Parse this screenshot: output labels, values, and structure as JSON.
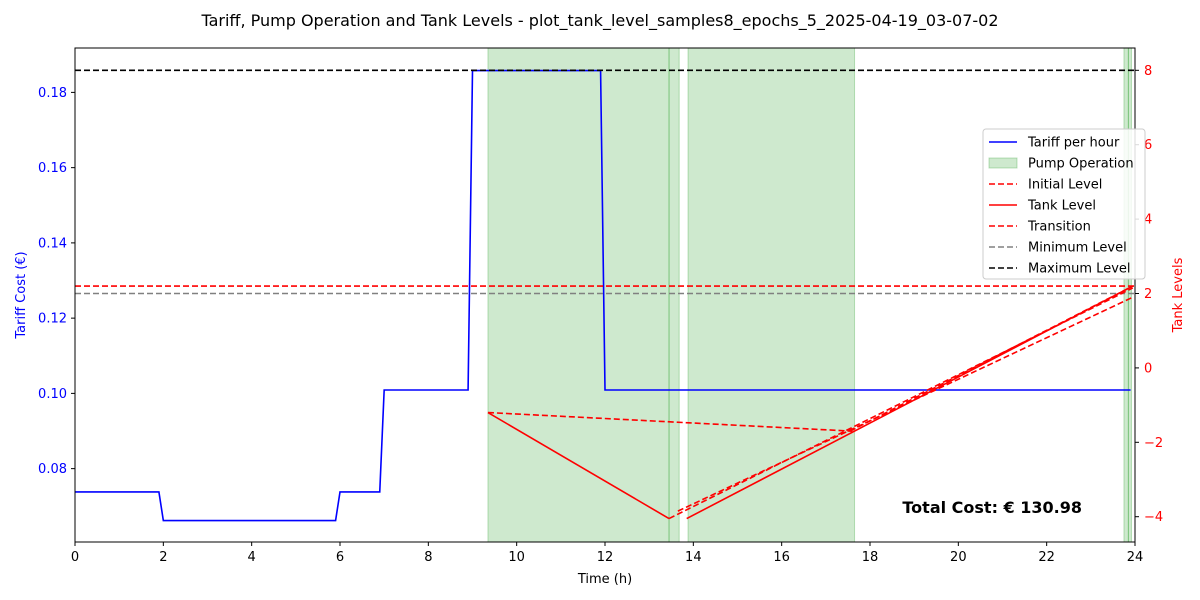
{
  "chart_data": {
    "type": "line",
    "title": "Tariff, Pump Operation and Tank Levels - plot_tank_level_samples8_epochs_5_2025-04-19_03-07-02",
    "xlabel": "Time (h)",
    "ylabel_left": "Tariff Cost (€)",
    "ylabel_right": "Tank Levels",
    "xlim": [
      0,
      24
    ],
    "ylim_left": [
      0.0605,
      0.1918
    ],
    "ylim_right": [
      -4.68,
      8.6
    ],
    "x_ticks": [
      0,
      2,
      4,
      6,
      8,
      10,
      12,
      14,
      16,
      18,
      20,
      22,
      24
    ],
    "y_left_ticks": [
      0.08,
      0.1,
      0.12,
      0.14,
      0.16,
      0.18
    ],
    "y_left_tick_labels": [
      "0.08",
      "0.10",
      "0.12",
      "0.14",
      "0.16",
      "0.18"
    ],
    "y_right_ticks": [
      -4,
      -2,
      0,
      2,
      4,
      6,
      8
    ],
    "y_right_tick_labels": [
      "−4",
      "−2",
      "0",
      "2",
      "4",
      "6",
      "8"
    ],
    "grid": false,
    "legend_position": "right",
    "colors": {
      "tariff": "#0000ff",
      "pump": "#2ca02c",
      "tank": "#ff0000",
      "min_level": "#808080",
      "max_level": "#000000"
    },
    "tariff_series": {
      "name": "Tariff per hour",
      "x": [
        0,
        1.9,
        2,
        5.9,
        6,
        6.9,
        7,
        8.9,
        9,
        11.9,
        12,
        23.9
      ],
      "y": [
        0.0738,
        0.0738,
        0.0662,
        0.0662,
        0.0738,
        0.0738,
        0.1009,
        0.1009,
        0.1858,
        0.1858,
        0.1009,
        0.1009
      ]
    },
    "pump_operation": {
      "name": "Pump Operation",
      "intervals": [
        [
          9.35,
          13.45
        ],
        [
          13.45,
          13.68
        ],
        [
          13.88,
          17.65
        ],
        [
          23.75,
          23.85
        ],
        [
          23.85,
          23.92
        ]
      ]
    },
    "initial_level": {
      "name": "Initial Level",
      "value": 2.2
    },
    "tank_level": {
      "name": "Tank Level",
      "segments": [
        {
          "x": [
            9.35,
            13.45
          ],
          "y": [
            -1.2,
            -4.05
          ]
        },
        {
          "x": [
            13.85,
            23.95
          ],
          "y": [
            -4.05,
            2.2
          ]
        }
      ]
    },
    "transition": {
      "name": "Transition",
      "segments": [
        {
          "x": [
            9.35,
            17.6
          ],
          "y": [
            -1.2,
            -1.7
          ]
        },
        {
          "x": [
            13.45,
            23.95
          ],
          "y": [
            -4.05,
            2.15
          ]
        },
        {
          "x": [
            13.65,
            23.95
          ],
          "y": [
            -3.85,
            1.9
          ]
        },
        {
          "x": [
            17.55,
            23.95
          ],
          "y": [
            -1.7,
            2.2
          ]
        }
      ]
    },
    "minimum_level": {
      "name": "Minimum Level",
      "value": 2.0
    },
    "maximum_level": {
      "name": "Maximum Level",
      "value": 8.0
    },
    "legend": [
      "Tariff per hour",
      "Pump Operation",
      "Initial Level",
      "Tank Level",
      "Transition",
      "Minimum Level",
      "Maximum Level"
    ],
    "annotation": "Total Cost: € 130.98"
  }
}
